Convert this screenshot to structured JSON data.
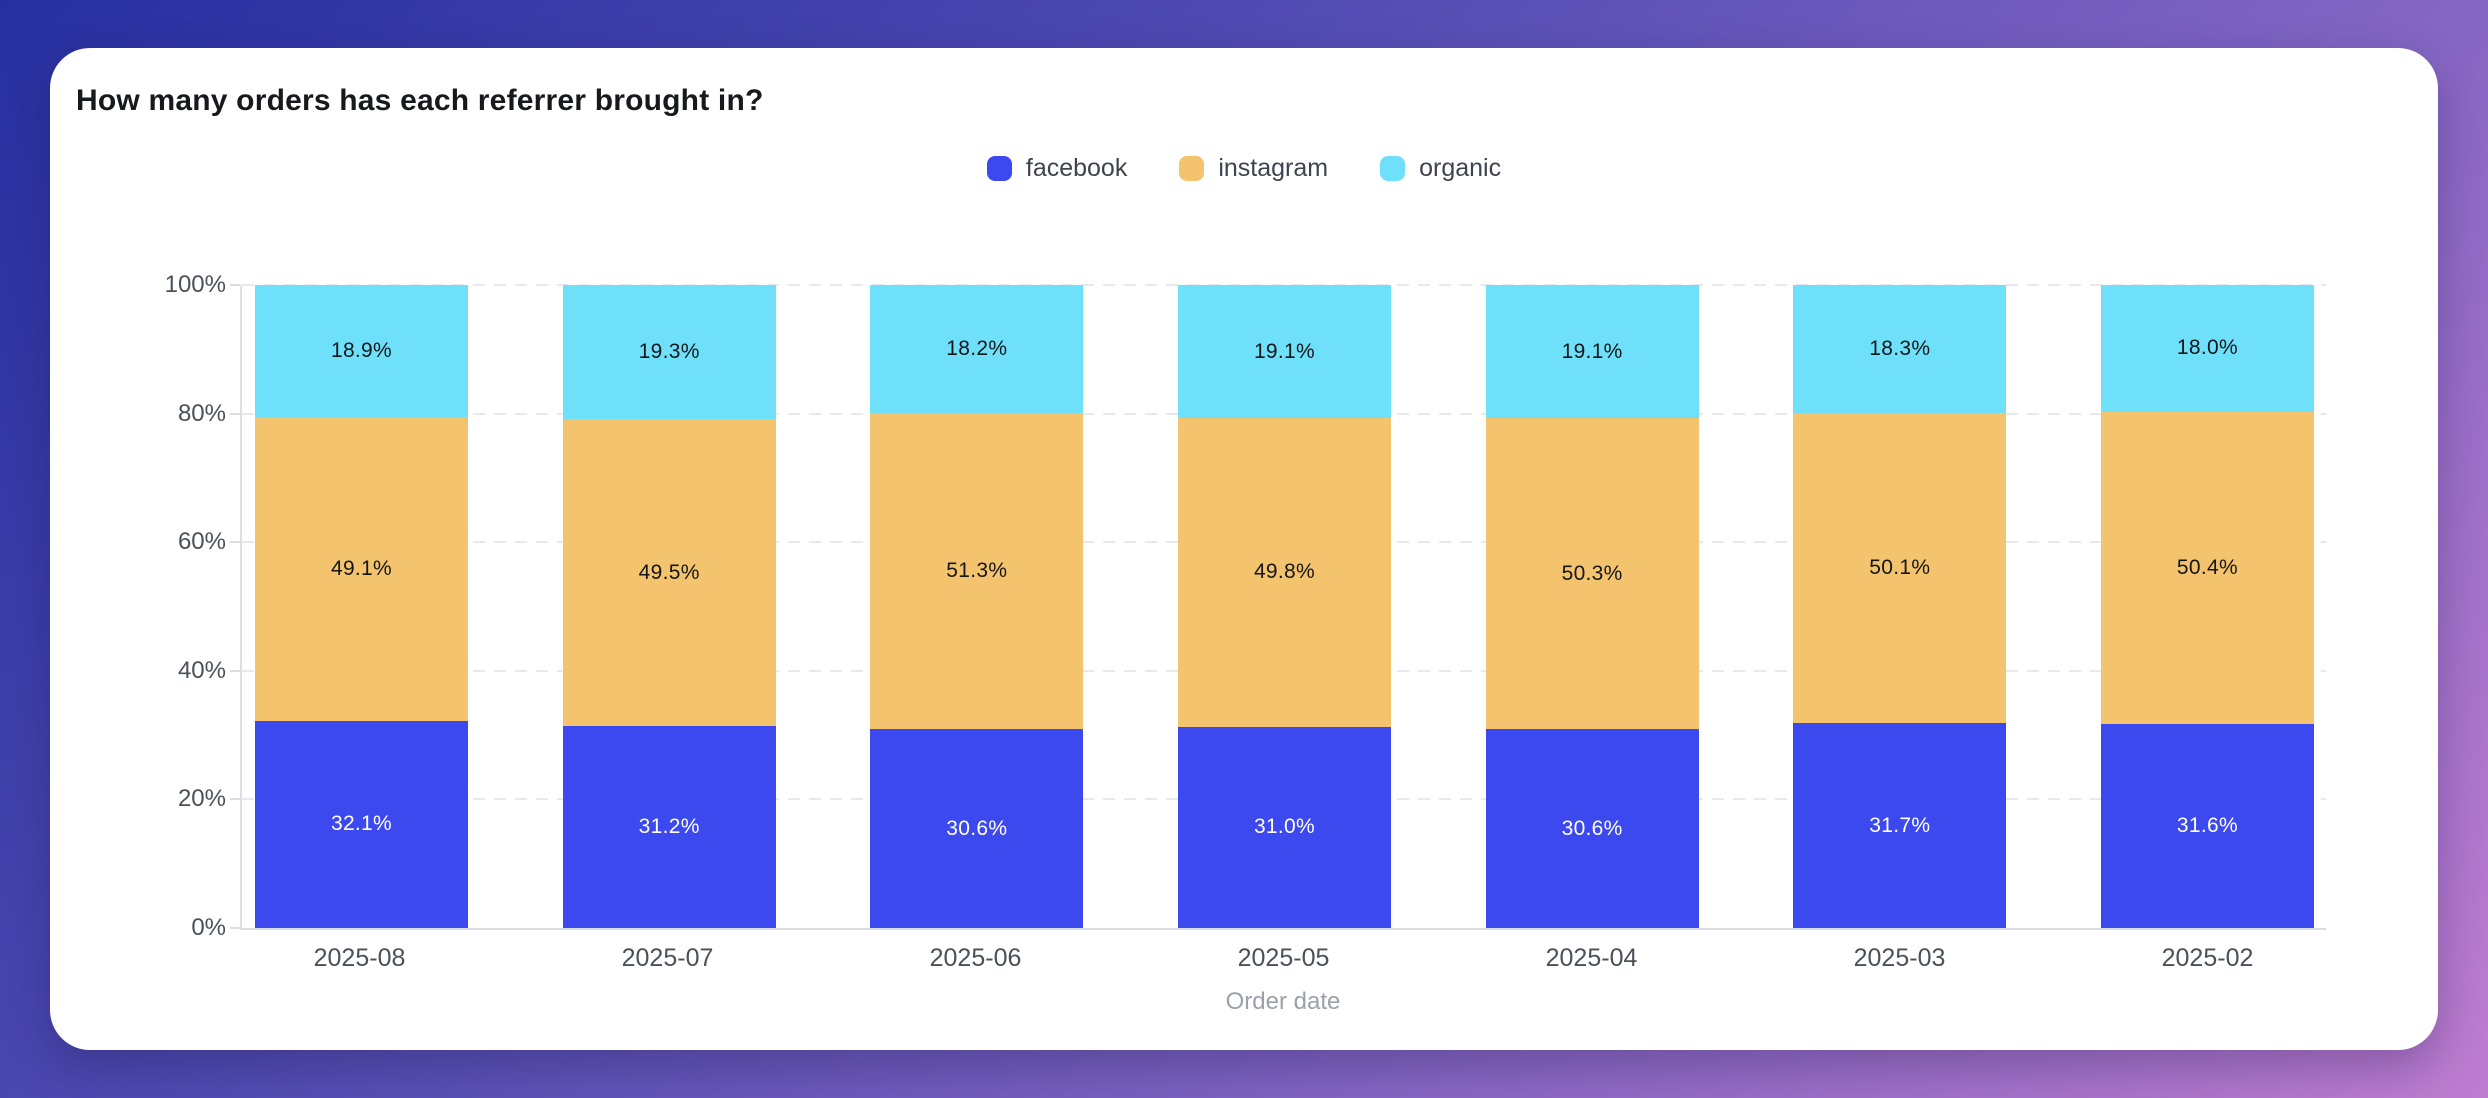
{
  "page": {
    "background_gradient": [
      "#272FA0",
      "#4F4AB2",
      "#7E63C2",
      "#BF7DD0"
    ],
    "card_background": "#FFFFFF"
  },
  "chart_data": {
    "type": "bar",
    "stacked": true,
    "unit": "percent",
    "title": "How many orders has each referrer brought in?",
    "xlabel": "Order date",
    "ylabel": "",
    "ylim": [
      0,
      100
    ],
    "grid": "horizontal-dashed",
    "legend_position": "top-center",
    "categories": [
      "2025-08",
      "2025-07",
      "2025-06",
      "2025-05",
      "2025-04",
      "2025-03",
      "2025-02"
    ],
    "y_ticks": [
      {
        "v": 0,
        "label": "0%"
      },
      {
        "v": 20,
        "label": "20%"
      },
      {
        "v": 40,
        "label": "40%"
      },
      {
        "v": 60,
        "label": "60%"
      },
      {
        "v": 80,
        "label": "80%"
      },
      {
        "v": 100,
        "label": "100%"
      }
    ],
    "series": [
      {
        "name": "facebook",
        "color": "#3C49EF",
        "label_color": "#FFFFFF",
        "values": [
          32.1,
          31.2,
          30.6,
          31.0,
          30.6,
          31.7,
          31.6
        ],
        "labels": [
          "32.1%",
          "31.2%",
          "30.6%",
          "31.0%",
          "30.6%",
          "31.7%",
          "31.6%"
        ]
      },
      {
        "name": "instagram",
        "color": "#F4C36D",
        "label_color": "#15161A",
        "values": [
          49.1,
          49.5,
          51.3,
          49.8,
          50.3,
          50.1,
          50.4
        ],
        "labels": [
          "49.1%",
          "49.5%",
          "51.3%",
          "49.8%",
          "50.3%",
          "50.1%",
          "50.4%"
        ]
      },
      {
        "name": "organic",
        "color": "#6FE0FA",
        "label_color": "#15161A",
        "values": [
          18.9,
          19.3,
          18.2,
          19.1,
          19.1,
          18.3,
          18.0
        ],
        "labels": [
          "18.9%",
          "19.3%",
          "18.2%",
          "19.1%",
          "19.1%",
          "18.3%",
          "18.0%"
        ]
      }
    ],
    "axis_colors": {
      "grid": "#E6E9ED",
      "axis_line": "#DCE0E6",
      "tick_label": "#4A515A",
      "axis_title": "#9BA1AB"
    }
  }
}
